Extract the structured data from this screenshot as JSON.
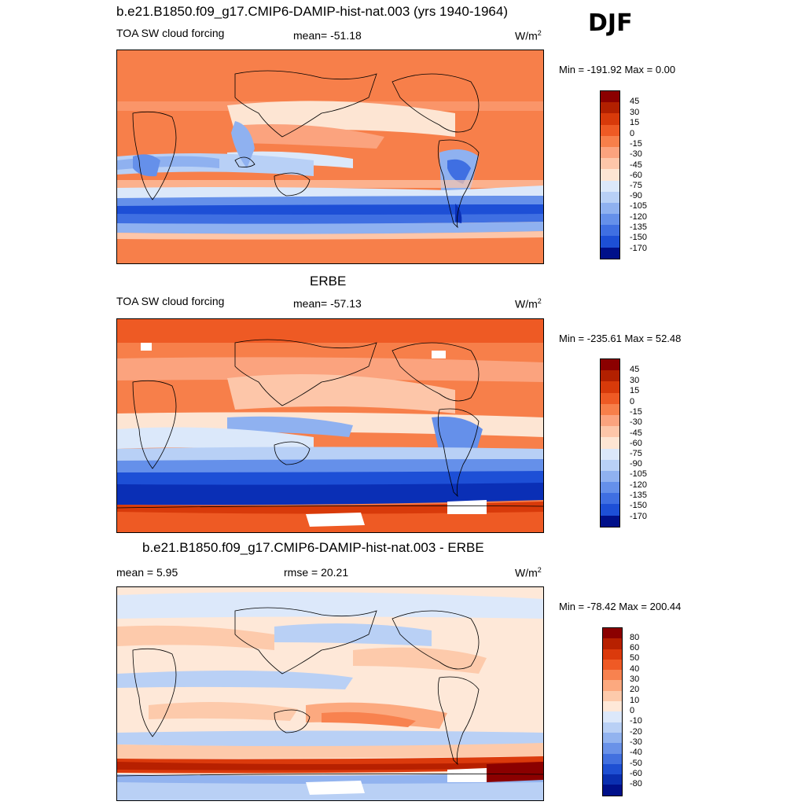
{
  "season": "DJF",
  "panels": [
    {
      "title": "b.e21.B1850.f09_g17.CMIP6-DAMIP-hist-nat.003 (yrs 1940-1964)",
      "left_label": "TOA SW cloud forcing",
      "stat_label": "mean= -51.18",
      "units_base": "W/m",
      "units_sup": "2",
      "minmax": "Min = -191.92 Max =   0.00",
      "levels": [
        "45",
        "30",
        "15",
        "0",
        "-15",
        "-30",
        "-45",
        "-60",
        "-75",
        "-90",
        "-105",
        "-120",
        "-135",
        "-150",
        "-170"
      ]
    },
    {
      "title": "ERBE",
      "left_label": "TOA SW cloud forcing",
      "stat_label": "mean= -57.13",
      "units_base": "W/m",
      "units_sup": "2",
      "minmax": "Min = -235.61 Max =  52.48",
      "levels": [
        "45",
        "30",
        "15",
        "0",
        "-15",
        "-30",
        "-45",
        "-60",
        "-75",
        "-90",
        "-105",
        "-120",
        "-135",
        "-150",
        "-170"
      ]
    },
    {
      "title": "b.e21.B1850.f09_g17.CMIP6-DAMIP-hist-nat.003 - ERBE",
      "left_label": "mean =   5.95",
      "stat_label": "rmse =  20.21",
      "units_base": "W/m",
      "units_sup": "2",
      "minmax": "Min = -78.42 Max = 200.44",
      "levels": [
        "80",
        "60",
        "50",
        "40",
        "30",
        "20",
        "10",
        "0",
        "-10",
        "-20",
        "-30",
        "-40",
        "-50",
        "-60",
        "-80"
      ]
    }
  ],
  "colors": {
    "cf": [
      "#8b0000",
      "#b22000",
      "#d83a0a",
      "#ee5a24",
      "#f77f4a",
      "#fba37e",
      "#fdc6a9",
      "#fde5d3",
      "#dbe8fa",
      "#b8d0f6",
      "#8fb1f0",
      "#6590ea",
      "#3f6fe2",
      "#1d4fd6",
      "#0a2fb6",
      "#00108a"
    ],
    "diff": [
      "#8b0000",
      "#b72000",
      "#db3a0c",
      "#ef5a25",
      "#f8824f",
      "#fca97f",
      "#fdcaab",
      "#fee8d8",
      "#dce8fa",
      "#b9d0f5",
      "#92b3ef",
      "#6a92e8",
      "#4270df",
      "#1e4fd2",
      "#0a2fb0",
      "#00108a"
    ]
  },
  "chart_data": [
    {
      "type": "heatmap",
      "title": "b.e21.B1850.f09_g17.CMIP6-DAMIP-hist-nat.003 (yrs 1940-1964)",
      "variable": "TOA SW cloud forcing",
      "season": "DJF",
      "units": "W/m2",
      "mean": -51.18,
      "min": -191.92,
      "max": 0.0,
      "contour_levels": [
        45,
        30,
        15,
        0,
        -15,
        -30,
        -45,
        -60,
        -75,
        -90,
        -105,
        -120,
        -135,
        -150,
        -170
      ]
    },
    {
      "type": "heatmap",
      "title": "ERBE",
      "variable": "TOA SW cloud forcing",
      "season": "DJF",
      "units": "W/m2",
      "mean": -57.13,
      "min": -235.61,
      "max": 52.48,
      "contour_levels": [
        45,
        30,
        15,
        0,
        -15,
        -30,
        -45,
        -60,
        -75,
        -90,
        -105,
        -120,
        -135,
        -150,
        -170
      ]
    },
    {
      "type": "heatmap",
      "title": "b.e21.B1850.f09_g17.CMIP6-DAMIP-hist-nat.003 - ERBE",
      "variable": "TOA SW cloud forcing difference",
      "season": "DJF",
      "units": "W/m2",
      "mean": 5.95,
      "rmse": 20.21,
      "min": -78.42,
      "max": 200.44,
      "contour_levels": [
        80,
        60,
        50,
        40,
        30,
        20,
        10,
        0,
        -10,
        -20,
        -30,
        -40,
        -50,
        -60,
        -80
      ]
    }
  ]
}
